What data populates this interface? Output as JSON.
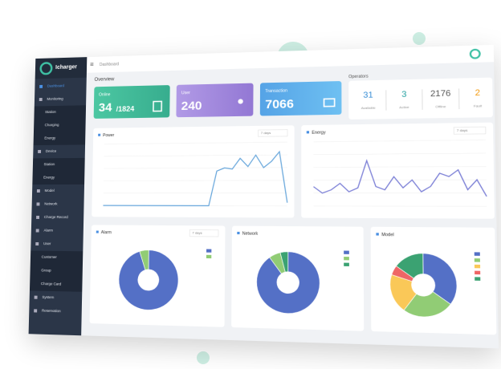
{
  "sidebar": {
    "logo": "Icharger",
    "items": [
      "Dashboard",
      "Monitoring",
      "Station",
      "Charging",
      "Energy",
      "Device",
      "Station",
      "Energy",
      "Model",
      "Network",
      "Charge Record",
      "Alarm",
      "User",
      "Customer",
      "Group",
      "Charge Card",
      "System",
      "Reservation"
    ]
  },
  "header": {
    "breadcrumb": "Dashboard",
    "section": "Overview"
  },
  "cards": [
    {
      "label": "Online",
      "value": "34",
      "total": "/1824"
    },
    {
      "label": "User",
      "value": "240"
    },
    {
      "label": "Transaction",
      "value": "7066"
    }
  ],
  "operators": {
    "title": "Operators",
    "items": [
      {
        "value": "31",
        "label": "Available"
      },
      {
        "value": "3",
        "label": "Active"
      },
      {
        "value": "2176",
        "label": "Offline"
      },
      {
        "value": "2",
        "label": "Fault"
      }
    ]
  },
  "chart_data": [
    {
      "type": "line",
      "title": "Power",
      "filter": "7 days",
      "color": "#6aa8dc",
      "ylim": [
        0,
        100
      ],
      "values": [
        0,
        0,
        0,
        0,
        0,
        0,
        0,
        0,
        0,
        0,
        0,
        0,
        0,
        0,
        0,
        55,
        60,
        58,
        75,
        62,
        80,
        60,
        70,
        85,
        5
      ]
    },
    {
      "type": "line",
      "title": "Energy",
      "filter": "7 days",
      "color": "#7b7fd6",
      "ylim": [
        0,
        100
      ],
      "values": [
        30,
        20,
        25,
        35,
        22,
        28,
        70,
        30,
        25,
        45,
        28,
        40,
        22,
        30,
        50,
        45,
        55,
        25,
        40,
        15
      ]
    },
    {
      "type": "pie",
      "title": "Alarm",
      "filter": "7 days",
      "values": [
        95,
        5
      ],
      "colors": [
        "#5470c6",
        "#91cc75"
      ]
    },
    {
      "type": "pie",
      "title": "Network",
      "values": [
        90,
        6,
        4
      ],
      "colors": [
        "#5470c6",
        "#91cc75",
        "#3ba272"
      ]
    },
    {
      "type": "pie",
      "title": "Model",
      "values": [
        35,
        25,
        20,
        5,
        15
      ],
      "colors": [
        "#5470c6",
        "#91cc75",
        "#fac858",
        "#ee6666",
        "#3ba272"
      ]
    }
  ]
}
